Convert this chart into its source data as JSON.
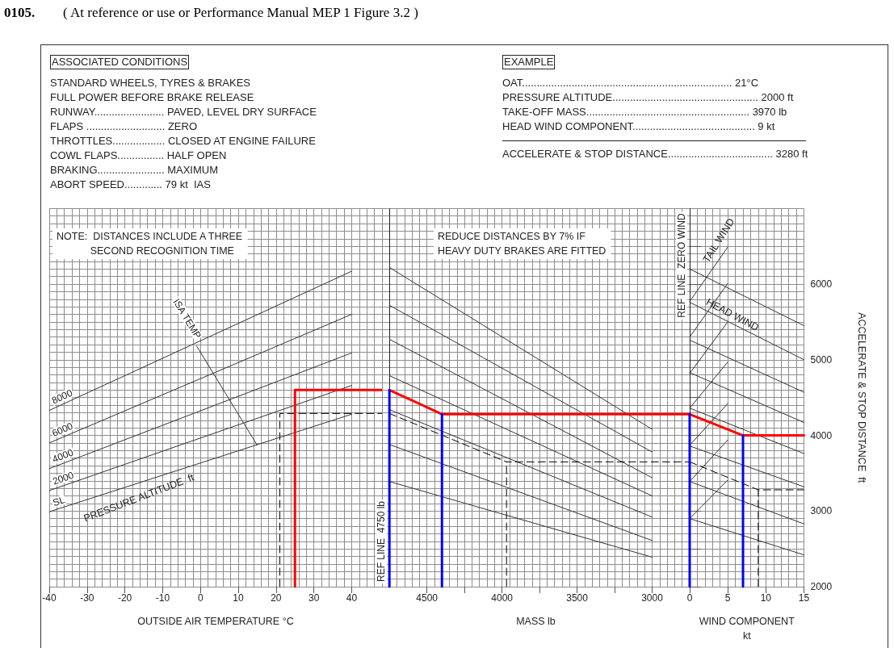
{
  "chart_data": [
    {
      "type": "other",
      "title": "0105.",
      "subtitle": "( At reference or use or Performance Manual MEP 1 Figure 3.2 )",
      "annotations": [
        "ASSOCIATED CONDITIONS",
        "STANDARD WHEELS, TYRES & BRAKES",
        "FULL POWER BEFORE BRAKE RELEASE",
        "RUNWAY........................ PAVED, LEVEL DRY SURFACE",
        "FLAPS ........................... ZERO",
        "THROTTLES.................. CLOSED AT ENGINE FAILURE",
        "COWL FLAPS................ HALF OPEN",
        "BRAKING....................... MAXIMUM",
        "ABORT SPEED............. 79 kt  IAS"
      ]
    },
    {
      "type": "other",
      "annotations": [
        "EXAMPLE",
        "OAT........................................................................ 21°C",
        "PRESSURE ALTITUDE.................................................. 2000 ft",
        "TAKE-OFF MASS........................................................ 3970 lb",
        "HEAD WIND COMPONENT.......................................... 9 kt",
        "ACCELERATE & STOP DISTANCE.................................... 3280 ft"
      ]
    },
    {
      "type": "line",
      "xlabel": "OUTSIDE AIR TEMPERATURE °C",
      "xlim": [
        -40,
        48
      ],
      "xticks": [
        -40,
        -30,
        -20,
        -10,
        0,
        10,
        20,
        30,
        40
      ],
      "ylim": [
        2000,
        7000
      ],
      "yticks": [
        2000,
        {
          "value": 2500,
          "label": null
        },
        3000,
        {
          "value": 3500,
          "label": null
        },
        4000,
        {
          "value": 4500,
          "label": null
        },
        5000,
        {
          "value": 5500,
          "label": null
        },
        6000,
        {
          "value": 6500,
          "label": null
        }
      ],
      "tick_labels": "x",
      "grid": true,
      "annotations": [
        "NOTE:  DISTANCES INCLUDE A THREE\n            SECOND RECOGNITION TIME",
        "PRESSURE ALTITUDE  ft"
      ],
      "series": [
        {
          "name": "SL",
          "color": "#333333",
          "x": [
            -40,
            40
          ],
          "values": [
            2990,
            4280
          ]
        },
        {
          "name": "2000",
          "color": "#333333",
          "x": [
            -40,
            40
          ],
          "values": [
            3270,
            4660
          ]
        },
        {
          "name": "4000",
          "color": "#333333",
          "x": [
            -40,
            40
          ],
          "values": [
            3560,
            5090
          ]
        },
        {
          "name": "6000",
          "color": "#333333",
          "x": [
            -40,
            40
          ],
          "values": [
            3900,
            5600
          ]
        },
        {
          "name": "8000",
          "color": "#333333",
          "x": [
            -40,
            40
          ],
          "values": [
            4330,
            6170
          ]
        },
        {
          "name": "ISA TEMP",
          "color": "#333333",
          "x": [
            -1,
            15
          ],
          "values": [
            5180,
            3870
          ]
        },
        {
          "color": "#ff0000",
          "x": [
            25,
            25,
            48
          ],
          "values": [
            2000,
            4600,
            4600
          ]
        },
        {
          "color": "#000000",
          "line_style": "dashed",
          "x": [
            21,
            21,
            48
          ],
          "values": [
            2000,
            4290,
            4290
          ]
        }
      ]
    },
    {
      "type": "line",
      "xlabel": "MASS lb",
      "xlim": [
        4800,
        2750
      ],
      "xticks": [
        4500,
        {
          "value": 4250,
          "label": null
        },
        4000,
        {
          "value": 3750,
          "label": null
        },
        3500,
        {
          "value": 3250,
          "label": null
        },
        3000
      ],
      "ylim": [
        2000,
        7000
      ],
      "yticks": [
        2000,
        {
          "value": 2500,
          "label": null
        },
        3000,
        {
          "value": 3500,
          "label": null
        },
        4000,
        {
          "value": 4500,
          "label": null
        },
        5000,
        {
          "value": 5500,
          "label": null
        },
        6000,
        {
          "value": 6500,
          "label": null
        }
      ],
      "tick_labels": "x",
      "grid": true,
      "annotations": [
        "REDUCE DISTANCES BY 7% IF\nHEAVY DUTY BRAKES ARE FITTED"
      ],
      "ref_lines": [
        {
          "axis": "x",
          "value": 4750,
          "label": "REF LINE  4750 lb"
        }
      ],
      "series": [
        {
          "color": "#333333",
          "x": [
            4750,
            3000
          ],
          "values": [
            6220,
            4080
          ]
        },
        {
          "color": "#333333",
          "x": [
            4750,
            3000
          ],
          "values": [
            5720,
            3780
          ]
        },
        {
          "color": "#333333",
          "x": [
            4750,
            3000
          ],
          "values": [
            5270,
            3440
          ]
        },
        {
          "color": "#333333",
          "x": [
            4750,
            3000
          ],
          "values": [
            4790,
            3200
          ]
        },
        {
          "color": "#333333",
          "x": [
            4750,
            3000
          ],
          "values": [
            4340,
            2920
          ]
        },
        {
          "color": "#333333",
          "x": [
            4750,
            3000
          ],
          "values": [
            3880,
            2610
          ]
        },
        {
          "color": "#333333",
          "x": [
            4750,
            3000
          ],
          "values": [
            3390,
            2390
          ]
        },
        {
          "color": "#ff0000",
          "x": [
            4750,
            4400,
            2750
          ],
          "values": [
            4600,
            4280,
            4280
          ]
        },
        {
          "color": "#0000ff",
          "x": [
            4750,
            4750
          ],
          "values": [
            2000,
            4600
          ]
        },
        {
          "color": "#0000ff",
          "x": [
            4400,
            4400
          ],
          "values": [
            2000,
            4280
          ]
        },
        {
          "color": "#000000",
          "line_style": "dashed",
          "x": [
            4750,
            3970,
            2750
          ],
          "values": [
            4290,
            3650,
            3650
          ]
        },
        {
          "color": "#000000",
          "line_style": "dashed",
          "x": [
            3970,
            3970
          ],
          "values": [
            2000,
            3650
          ]
        }
      ]
    },
    {
      "type": "line",
      "xlabel": "WIND COMPONENT\nkt",
      "ylabel": "ACCELERATE & STOP DISTANCE  ft",
      "xlim": [
        0,
        15
      ],
      "xticks": [
        0,
        5,
        10,
        15
      ],
      "ylim": [
        2000,
        7000
      ],
      "yticks": [
        2000,
        {
          "value": 2500,
          "label": null
        },
        3000,
        {
          "value": 3500,
          "label": null
        },
        4000,
        {
          "value": 4500,
          "label": null
        },
        5000,
        {
          "value": 5500,
          "label": null
        },
        6000,
        {
          "value": 6500,
          "label": null
        }
      ],
      "grid": true,
      "annotations": [
        "TAIL WIND",
        "HEAD WIND"
      ],
      "ref_lines": [
        {
          "axis": "x",
          "value": 0,
          "label": "REF LINE  ZERO WIND"
        }
      ],
      "series": [
        {
          "color": "#333333",
          "x": [
            0,
            15
          ],
          "values": [
            6200,
            5450
          ]
        },
        {
          "color": "#333333",
          "x": [
            0,
            15
          ],
          "values": [
            5760,
            5000
          ]
        },
        {
          "color": "#333333",
          "x": [
            0,
            15
          ],
          "values": [
            5260,
            4570
          ]
        },
        {
          "color": "#333333",
          "x": [
            0,
            15
          ],
          "values": [
            4830,
            4170
          ]
        },
        {
          "color": "#333333",
          "x": [
            0,
            15
          ],
          "values": [
            4360,
            3760
          ]
        },
        {
          "color": "#333333",
          "x": [
            0,
            15
          ],
          "values": [
            3860,
            3320
          ]
        },
        {
          "color": "#333333",
          "x": [
            0,
            15
          ],
          "values": [
            3390,
            2830
          ]
        },
        {
          "color": "#333333",
          "x": [
            0,
            15
          ],
          "values": [
            2900,
            2420
          ]
        },
        {
          "color": "#333333",
          "x": [
            0,
            5
          ],
          "values": [
            5770,
            6490
          ]
        },
        {
          "color": "#333333",
          "x": [
            0,
            5
          ],
          "values": [
            5300,
            6010
          ]
        },
        {
          "color": "#333333",
          "x": [
            0,
            5
          ],
          "values": [
            4820,
            5500
          ]
        },
        {
          "color": "#333333",
          "x": [
            0,
            5
          ],
          "values": [
            4360,
            4970
          ]
        },
        {
          "color": "#333333",
          "x": [
            0,
            5
          ],
          "values": [
            3870,
            4420
          ]
        },
        {
          "color": "#333333",
          "x": [
            0,
            5
          ],
          "values": [
            3390,
            3940
          ]
        },
        {
          "color": "#333333",
          "x": [
            0,
            5
          ],
          "values": [
            2900,
            3410
          ]
        },
        {
          "color": "#ff0000",
          "x": [
            0,
            7,
            15
          ],
          "values": [
            4280,
            4000,
            4000
          ]
        },
        {
          "color": "#0000ff",
          "x": [
            0,
            0
          ],
          "values": [
            2000,
            4280
          ]
        },
        {
          "color": "#0000ff",
          "x": [
            7,
            7
          ],
          "values": [
            2000,
            4000
          ]
        },
        {
          "color": "#000000",
          "line_style": "dashed",
          "x": [
            0,
            9,
            15
          ],
          "values": [
            3650,
            3280,
            3280
          ]
        },
        {
          "color": "#000000",
          "line_style": "dashed",
          "x": [
            9,
            9
          ],
          "values": [
            2000,
            3280
          ]
        }
      ]
    }
  ]
}
